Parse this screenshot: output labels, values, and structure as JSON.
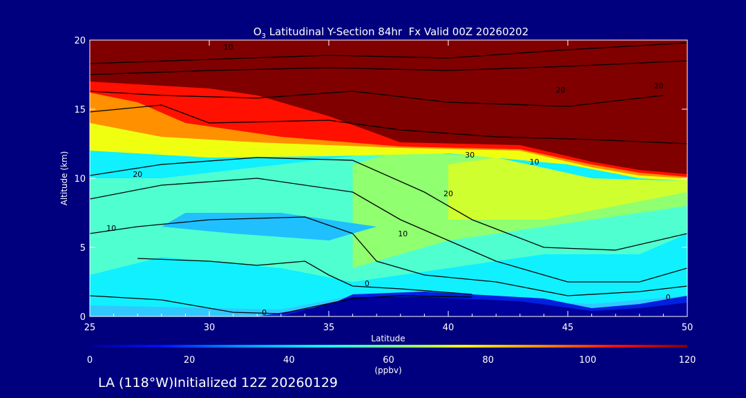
{
  "chart_data": {
    "type": "heatmap",
    "title": "O<sub>3</sub> Latitudinal Y-Section 84hr  Fx Valid 00Z 20260202",
    "title_prefix": "O",
    "title_sub": "3",
    "title_rest": " Latitudinal Y-Section 84hr  Fx Valid 00Z 20260202",
    "xlabel": "Latitude",
    "ylabel": "Altitude (km)",
    "xlim": [
      25,
      50
    ],
    "ylim": [
      0,
      20
    ],
    "x_ticks": [
      "25",
      "30",
      "35",
      "40",
      "45",
      "50"
    ],
    "y_ticks": [
      "0",
      "5",
      "10",
      "15",
      "20"
    ],
    "colorbar": {
      "ticks": [
        "0",
        "20",
        "40",
        "60",
        "80",
        "100",
        "120"
      ],
      "label": "(ppbv)",
      "range": [
        0,
        120
      ],
      "colors": [
        "#000090",
        "#0010ff",
        "#0090ff",
        "#10f0ff",
        "#70ff90",
        "#f0ff10",
        "#ff9000",
        "#ff1000",
        "#800000"
      ]
    },
    "contour_labels": [
      "0",
      "0",
      "0",
      "10",
      "10",
      "10",
      "20",
      "20",
      "20",
      "30",
      "10",
      "20"
    ],
    "series": []
  },
  "footer": "LA (118°W)Initialized 12Z 20260129",
  "colors": {
    "background": "#00007f",
    "text": "#ffffff"
  }
}
